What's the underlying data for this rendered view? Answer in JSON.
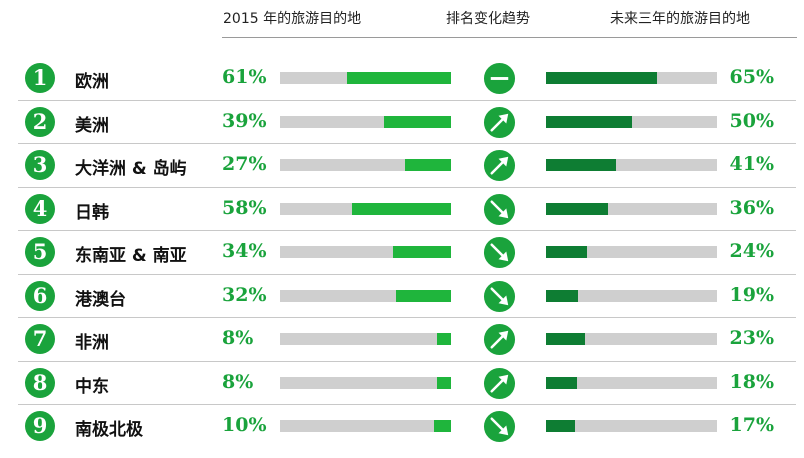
{
  "header": {
    "col_2015": "2015 年的旅游目的地",
    "col_trend": "排名变化趋势",
    "col_future": "未来三年的旅游目的地"
  },
  "colors": {
    "accent": "#1aa33c",
    "bar_2015": "#1fb53c",
    "bar_future": "#0e7d33",
    "track": "#cfcfcf"
  },
  "chart_data": {
    "type": "bar",
    "categories": [
      "欧洲",
      "美洲",
      "大洋洲 & 岛屿",
      "日韩",
      "东南亚 & 南亚",
      "港澳台",
      "非洲",
      "中东",
      "南极北极"
    ],
    "series": [
      {
        "name": "2015 年的旅游目的地",
        "values": [
          61,
          39,
          27,
          58,
          34,
          32,
          8,
          8,
          10
        ]
      },
      {
        "name": "未来三年的旅游目的地",
        "values": [
          65,
          50,
          41,
          36,
          24,
          19,
          23,
          18,
          17
        ]
      }
    ],
    "ylim": [
      0,
      100
    ],
    "unit": "%"
  },
  "rows": [
    {
      "rank": "1",
      "region": "欧洲",
      "pct_2015": "61%",
      "trend": "flat-icon",
      "pct_future": "65%"
    },
    {
      "rank": "2",
      "region": "美洲",
      "pct_2015": "39%",
      "trend": "arrow-up-icon",
      "pct_future": "50%"
    },
    {
      "rank": "3",
      "region": "大洋洲 & 岛屿",
      "pct_2015": "27%",
      "trend": "arrow-up-icon",
      "pct_future": "41%"
    },
    {
      "rank": "4",
      "region": "日韩",
      "pct_2015": "58%",
      "trend": "arrow-down-icon",
      "pct_future": "36%"
    },
    {
      "rank": "5",
      "region": "东南亚 & 南亚",
      "pct_2015": "34%",
      "trend": "arrow-down-icon",
      "pct_future": "24%"
    },
    {
      "rank": "6",
      "region": "港澳台",
      "pct_2015": "32%",
      "trend": "arrow-down-icon",
      "pct_future": "19%"
    },
    {
      "rank": "7",
      "region": "非洲",
      "pct_2015": "8%",
      "trend": "arrow-up-icon",
      "pct_future": "23%"
    },
    {
      "rank": "8",
      "region": "中东",
      "pct_2015": "8%",
      "trend": "arrow-up-icon",
      "pct_future": "18%"
    },
    {
      "rank": "9",
      "region": "南极北极",
      "pct_2015": "10%",
      "trend": "arrow-down-icon",
      "pct_future": "17%"
    }
  ]
}
